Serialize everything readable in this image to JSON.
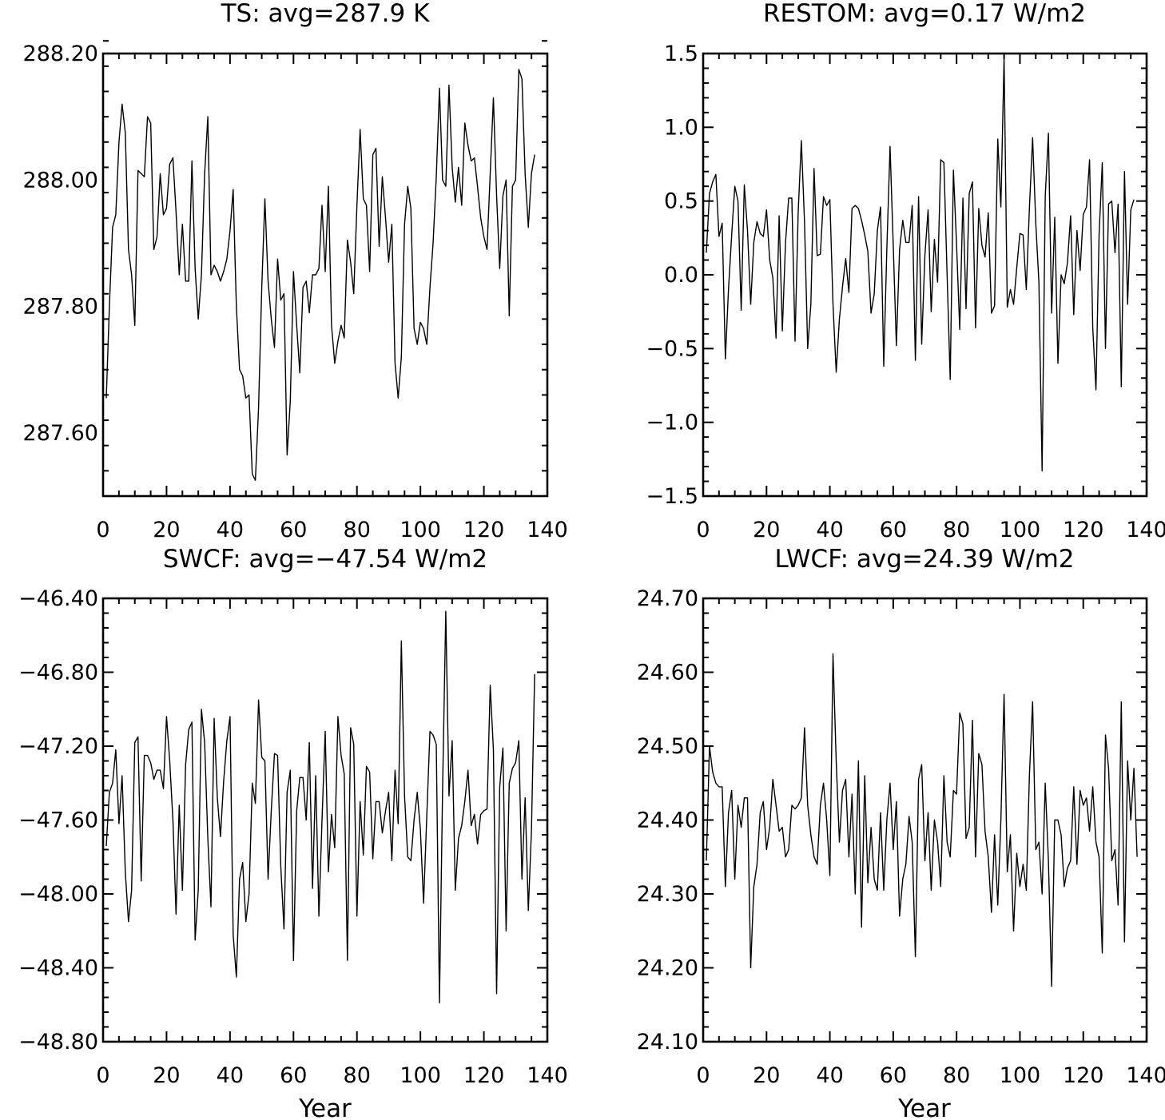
{
  "chart_data": [
    {
      "type": "line",
      "title": "TS: avg=287.9 K",
      "xlabel": "",
      "ylabel": "",
      "xlim": [
        0,
        140
      ],
      "ylim": [
        287.5,
        288.2
      ],
      "x_ticks": [
        0,
        20,
        40,
        60,
        80,
        100,
        120,
        140
      ],
      "x_tick_labels": [
        "0",
        "20",
        "40",
        "60",
        "80",
        "100",
        "120",
        "140"
      ],
      "y_ticks": [
        287.6,
        287.8,
        288.0,
        288.2
      ],
      "y_tick_labels": [
        "287.60",
        "287.80",
        "288.00",
        "288.20"
      ],
      "grid": false,
      "series": [
        {
          "x_start": 1,
          "x_step": 1,
          "values": [
            287.655,
            287.8,
            287.925,
            287.945,
            288.06,
            288.12,
            288.075,
            287.89,
            287.85,
            287.77,
            288.015,
            288.01,
            288.005,
            288.1,
            288.09,
            287.89,
            287.91,
            288.01,
            287.945,
            287.955,
            288.025,
            288.035,
            287.95,
            287.85,
            287.93,
            287.84,
            287.84,
            288.03,
            287.86,
            287.78,
            287.85,
            288.01,
            288.1,
            287.85,
            287.865,
            287.855,
            287.84,
            287.855,
            287.875,
            287.92,
            287.985,
            287.8,
            287.7,
            287.69,
            287.655,
            287.66,
            287.535,
            287.525,
            287.64,
            287.83,
            287.97,
            287.84,
            287.78,
            287.735,
            287.875,
            287.81,
            287.82,
            287.565,
            287.65,
            287.855,
            287.77,
            287.695,
            287.83,
            287.84,
            287.79,
            287.85,
            287.85,
            287.86,
            287.96,
            287.855,
            287.99,
            287.77,
            287.71,
            287.745,
            287.77,
            287.75,
            287.905,
            287.87,
            287.82,
            287.96,
            288.08,
            287.97,
            287.96,
            287.855,
            288.04,
            288.05,
            287.895,
            288.005,
            287.94,
            287.87,
            287.93,
            287.71,
            287.655,
            287.72,
            287.93,
            287.99,
            287.955,
            287.765,
            287.74,
            287.775,
            287.765,
            287.74,
            287.83,
            287.9,
            288.005,
            288.145,
            288.0,
            287.99,
            288.15,
            288.02,
            287.965,
            288.02,
            287.96,
            288.09,
            288.055,
            288.03,
            288.035,
            287.99,
            287.94,
            287.91,
            287.89,
            288.01,
            288.13,
            287.975,
            287.86,
            287.975,
            288.0,
            287.785,
            287.99,
            288.0,
            288.175,
            288.16,
            288.01,
            287.925,
            288.01,
            288.04
          ]
        }
      ]
    },
    {
      "type": "line",
      "title": "RESTOM: avg=0.17 W/m2",
      "xlabel": "",
      "ylabel": "",
      "xlim": [
        0,
        140
      ],
      "ylim": [
        -1.5,
        1.5
      ],
      "x_ticks": [
        0,
        20,
        40,
        60,
        80,
        100,
        120,
        140
      ],
      "x_tick_labels": [
        "0",
        "20",
        "40",
        "60",
        "80",
        "100",
        "120",
        "140"
      ],
      "y_ticks": [
        -1.5,
        -1.0,
        -0.5,
        0.0,
        0.5,
        1.0,
        1.5
      ],
      "y_tick_labels": [
        "−1.5",
        "−1.0",
        "−0.5",
        "0.0",
        "0.5",
        "1.0",
        "1.5"
      ],
      "grid": false,
      "series": [
        {
          "x_start": 1,
          "x_step": 1,
          "values": [
            0.15,
            0.55,
            0.63,
            0.68,
            0.26,
            0.35,
            -0.57,
            -0.1,
            0.27,
            0.6,
            0.5,
            -0.24,
            0.61,
            0.3,
            -0.2,
            0.22,
            0.36,
            0.28,
            0.26,
            0.44,
            0.1,
            -0.02,
            -0.43,
            0.4,
            -0.38,
            0.22,
            0.52,
            0.52,
            -0.45,
            0.42,
            0.91,
            0.35,
            -0.5,
            -0.2,
            0.72,
            0.13,
            0.14,
            0.53,
            0.47,
            0.51,
            -0.2,
            -0.66,
            -0.3,
            -0.08,
            0.11,
            -0.12,
            0.45,
            0.47,
            0.45,
            0.37,
            0.27,
            0.16,
            -0.26,
            -0.13,
            0.3,
            0.46,
            -0.62,
            0.18,
            0.87,
            0.2,
            -0.48,
            0.17,
            0.37,
            0.22,
            0.22,
            0.47,
            -0.58,
            0.53,
            -0.47,
            0.13,
            0.44,
            -0.25,
            0.24,
            -0.05,
            0.78,
            0.76,
            0.0,
            -0.71,
            0.71,
            0.21,
            -0.37,
            0.52,
            -0.23,
            0.55,
            0.63,
            -0.36,
            0.45,
            0.2,
            0.12,
            0.42,
            -0.26,
            -0.21,
            0.92,
            0.46,
            1.47,
            -0.22,
            -0.1,
            -0.2,
            0.05,
            0.28,
            0.27,
            -0.1,
            0.45,
            0.93,
            0.35,
            -0.05,
            -1.33,
            0.53,
            0.96,
            -0.26,
            0.39,
            -0.6,
            0.0,
            -0.06,
            0.08,
            0.4,
            -0.27,
            0.3,
            0.03,
            0.41,
            0.46,
            0.78,
            -0.36,
            -0.78,
            0.27,
            0.76,
            -0.5,
            0.48,
            0.5,
            0.15,
            0.48,
            -0.76,
            0.7,
            -0.2,
            0.44,
            0.51
          ]
        }
      ]
    },
    {
      "type": "line",
      "title": "SWCF: avg=−47.54 W/m2",
      "xlabel": "Year",
      "ylabel": "",
      "xlim": [
        0,
        140
      ],
      "ylim": [
        -48.8,
        -46.4
      ],
      "x_ticks": [
        0,
        20,
        40,
        60,
        80,
        100,
        120,
        140
      ],
      "x_tick_labels": [
        "0",
        "20",
        "40",
        "60",
        "80",
        "100",
        "120",
        "140"
      ],
      "y_ticks": [
        -48.8,
        -48.4,
        -48.0,
        -47.6,
        -47.2,
        -46.8,
        -46.4
      ],
      "y_tick_labels": [
        "−48.80",
        "−48.40",
        "−48.00",
        "−47.60",
        "−47.20",
        "−46.80",
        "−46.40"
      ],
      "grid": false,
      "series": [
        {
          "x_start": 1,
          "x_step": 1,
          "values": [
            -47.74,
            -47.45,
            -47.4,
            -47.22,
            -47.62,
            -47.36,
            -47.88,
            -48.15,
            -47.98,
            -47.18,
            -47.15,
            -47.93,
            -47.25,
            -47.25,
            -47.29,
            -47.38,
            -47.33,
            -47.33,
            -47.43,
            -47.04,
            -47.28,
            -47.6,
            -48.11,
            -47.52,
            -47.98,
            -47.3,
            -47.11,
            -47.07,
            -48.25,
            -47.98,
            -47.0,
            -47.18,
            -47.7,
            -48.07,
            -47.05,
            -47.48,
            -47.69,
            -47.39,
            -47.17,
            -47.04,
            -48.22,
            -48.45,
            -47.92,
            -47.83,
            -48.15,
            -48.0,
            -47.4,
            -47.51,
            -46.95,
            -47.26,
            -47.28,
            -47.92,
            -47.55,
            -47.24,
            -47.25,
            -47.85,
            -48.19,
            -47.45,
            -47.33,
            -48.36,
            -47.55,
            -47.37,
            -47.37,
            -47.6,
            -47.18,
            -47.97,
            -47.36,
            -48.12,
            -47.6,
            -47.12,
            -47.88,
            -47.57,
            -47.75,
            -47.04,
            -47.25,
            -47.35,
            -48.36,
            -47.1,
            -47.19,
            -48.12,
            -47.5,
            -47.79,
            -47.31,
            -47.34,
            -47.81,
            -47.5,
            -47.5,
            -47.67,
            -47.55,
            -47.45,
            -47.82,
            -47.33,
            -47.62,
            -46.63,
            -47.47,
            -47.8,
            -47.82,
            -47.6,
            -47.45,
            -47.65,
            -48.05,
            -47.58,
            -47.12,
            -47.14,
            -47.19,
            -48.59,
            -47.43,
            -46.47,
            -47.47,
            -47.17,
            -47.98,
            -47.7,
            -47.63,
            -47.5,
            -47.33,
            -47.63,
            -47.57,
            -47.73,
            -47.57,
            -47.55,
            -47.54,
            -46.87,
            -47.22,
            -48.54,
            -47.42,
            -47.21,
            -48.2,
            -47.4,
            -47.32,
            -47.29,
            -47.17,
            -47.92,
            -47.48,
            -48.09,
            -47.66,
            -46.81
          ]
        }
      ]
    },
    {
      "type": "line",
      "title": "LWCF: avg=24.39 W/m2",
      "xlabel": "Year",
      "ylabel": "",
      "xlim": [
        0,
        140
      ],
      "ylim": [
        24.1,
        24.7
      ],
      "x_ticks": [
        0,
        20,
        40,
        60,
        80,
        100,
        120,
        140
      ],
      "x_tick_labels": [
        "0",
        "20",
        "40",
        "60",
        "80",
        "100",
        "120",
        "140"
      ],
      "y_ticks": [
        24.1,
        24.2,
        24.3,
        24.4,
        24.5,
        24.6,
        24.7
      ],
      "y_tick_labels": [
        "24.10",
        "24.20",
        "24.30",
        "24.40",
        "24.50",
        "24.60",
        "24.70"
      ],
      "grid": false,
      "series": [
        {
          "x_start": 1,
          "x_step": 1,
          "values": [
            24.345,
            24.5,
            24.465,
            24.45,
            24.445,
            24.445,
            24.31,
            24.41,
            24.44,
            24.32,
            24.42,
            24.39,
            24.43,
            24.43,
            24.2,
            24.31,
            24.34,
            24.41,
            24.425,
            24.36,
            24.39,
            24.455,
            24.42,
            24.385,
            24.39,
            24.35,
            24.36,
            24.42,
            24.415,
            24.42,
            24.43,
            24.525,
            24.42,
            24.38,
            24.35,
            24.34,
            24.42,
            24.45,
            24.4,
            24.325,
            24.625,
            24.48,
            24.37,
            24.44,
            24.455,
            24.35,
            24.435,
            24.3,
            24.48,
            24.255,
            24.46,
            24.315,
            24.39,
            24.32,
            24.305,
            24.41,
            24.305,
            24.4,
            24.45,
            24.36,
            24.425,
            24.27,
            24.32,
            24.34,
            24.405,
            24.37,
            24.215,
            24.455,
            24.475,
            24.345,
            24.41,
            24.305,
            24.4,
            24.37,
            24.31,
            24.46,
            24.37,
            24.35,
            24.44,
            24.435,
            24.545,
            24.53,
            24.375,
            24.39,
            24.535,
            24.35,
            24.49,
            24.475,
            24.385,
            24.35,
            24.275,
            24.38,
            24.285,
            24.4,
            24.57,
            24.33,
            24.38,
            24.25,
            24.355,
            24.31,
            24.34,
            24.305,
            24.46,
            24.56,
            24.36,
            24.37,
            24.3,
            24.45,
            24.345,
            24.175,
            24.4,
            24.4,
            24.38,
            24.31,
            24.335,
            24.345,
            24.445,
            24.34,
            24.44,
            24.42,
            24.43,
            24.385,
            24.445,
            24.37,
            24.35,
            24.22,
            24.515,
            24.47,
            24.345,
            24.36,
            24.285,
            24.56,
            24.235,
            24.48,
            24.4,
            24.47,
            24.35
          ]
        }
      ]
    }
  ]
}
